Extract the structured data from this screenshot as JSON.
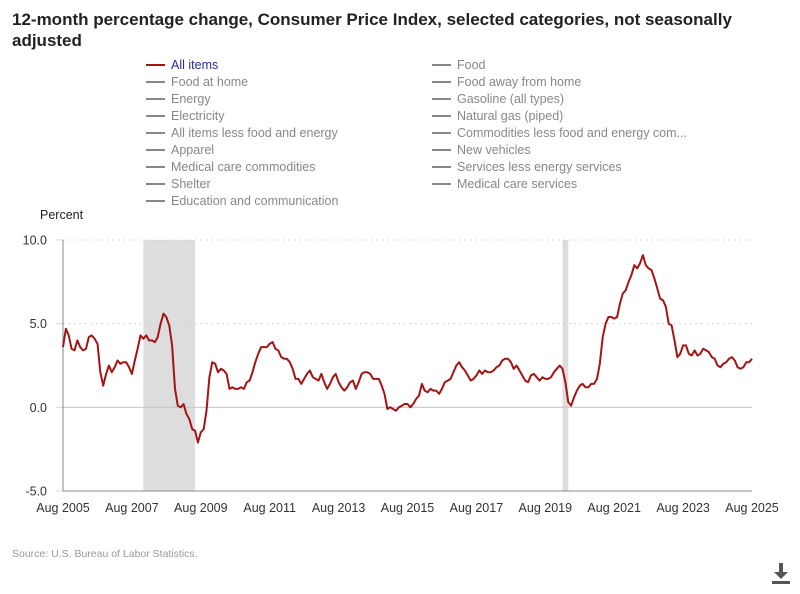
{
  "chart_data": {
    "type": "line",
    "title": "12-month percentage change, Consumer Price Index, selected categories, not seasonally adjusted",
    "ylabel": "Percent",
    "xlabel": "",
    "ylim": [
      -5,
      10
    ],
    "yticks": [
      "10.0",
      "5.0",
      "0.0",
      "-5.0"
    ],
    "ytick_values": [
      10,
      5,
      0,
      -5
    ],
    "xticks": [
      "Aug 2005",
      "Aug 2007",
      "Aug 2009",
      "Aug 2011",
      "Aug 2013",
      "Aug 2015",
      "Aug 2017",
      "Aug 2019",
      "Aug 2021",
      "Aug 2023",
      "Aug 2025"
    ],
    "x_start": "Aug 2005",
    "x_frequency": "monthly",
    "grid": "horizontal dotted",
    "recessions": [
      [
        "Dec 2007",
        "Jun 2009"
      ],
      [
        "Feb 2020",
        "Apr 2020"
      ]
    ],
    "series": [
      {
        "name": "All items",
        "color": "#a31515",
        "values": [
          3.6,
          4.7,
          4.3,
          3.5,
          3.4,
          4.0,
          3.6,
          3.4,
          3.5,
          4.2,
          4.3,
          4.1,
          3.8,
          2.1,
          1.3,
          2.0,
          2.5,
          2.1,
          2.4,
          2.8,
          2.6,
          2.7,
          2.7,
          2.4,
          2.0,
          2.8,
          3.5,
          4.3,
          4.1,
          4.3,
          4.0,
          4.0,
          3.9,
          4.2,
          5.0,
          5.6,
          5.4,
          4.9,
          3.7,
          1.1,
          0.1,
          0.0,
          0.2,
          -0.4,
          -0.7,
          -1.3,
          -1.4,
          -2.1,
          -1.5,
          -1.3,
          -0.2,
          1.8,
          2.7,
          2.6,
          2.1,
          2.3,
          2.2,
          2.0,
          1.1,
          1.2,
          1.1,
          1.1,
          1.2,
          1.1,
          1.5,
          1.6,
          2.1,
          2.7,
          3.2,
          3.6,
          3.6,
          3.6,
          3.8,
          3.9,
          3.5,
          3.4,
          3.0,
          2.9,
          2.9,
          2.7,
          2.3,
          1.7,
          1.7,
          1.4,
          1.7,
          2.0,
          2.2,
          1.8,
          1.7,
          1.6,
          2.0,
          1.5,
          1.1,
          1.4,
          1.8,
          2.0,
          1.5,
          1.2,
          1.0,
          1.2,
          1.5,
          1.6,
          1.1,
          1.5,
          2.0,
          2.1,
          2.1,
          2.0,
          1.7,
          1.7,
          1.7,
          1.3,
          0.8,
          -0.1,
          0.0,
          -0.1,
          -0.2,
          0.0,
          0.1,
          0.2,
          0.2,
          0.0,
          0.2,
          0.5,
          0.7,
          1.4,
          1.0,
          0.9,
          1.1,
          1.0,
          1.0,
          0.8,
          1.1,
          1.5,
          1.6,
          1.7,
          2.1,
          2.5,
          2.7,
          2.4,
          2.2,
          1.9,
          1.6,
          1.7,
          1.9,
          2.2,
          2.0,
          2.2,
          2.1,
          2.1,
          2.2,
          2.4,
          2.5,
          2.8,
          2.9,
          2.9,
          2.7,
          2.3,
          2.5,
          2.2,
          1.9,
          1.6,
          1.5,
          1.9,
          2.0,
          1.8,
          1.6,
          1.8,
          1.7,
          1.7,
          1.8,
          2.1,
          2.3,
          2.5,
          2.3,
          1.5,
          0.3,
          0.1,
          0.6,
          1.0,
          1.3,
          1.4,
          1.2,
          1.2,
          1.4,
          1.4,
          1.7,
          2.6,
          4.2,
          5.0,
          5.4,
          5.4,
          5.3,
          5.4,
          6.2,
          6.8,
          7.0,
          7.5,
          7.9,
          8.5,
          8.3,
          8.6,
          9.1,
          8.5,
          8.3,
          8.2,
          7.7,
          7.1,
          6.5,
          6.4,
          6.0,
          5.0,
          4.9,
          4.0,
          3.0,
          3.2,
          3.7,
          3.7,
          3.2,
          3.1,
          3.4,
          3.1,
          3.2,
          3.5,
          3.4,
          3.3,
          3.0,
          2.9,
          2.5,
          2.4,
          2.6,
          2.7,
          2.9,
          3.0,
          2.8,
          2.4,
          2.3,
          2.4,
          2.7,
          2.7,
          2.9
        ]
      }
    ],
    "legend": [
      "All items",
      "Food",
      "Food at home",
      "Food away from home",
      "Energy",
      "Gasoline (all types)",
      "Electricity",
      "Natural gas (piped)",
      "All items less food and energy",
      "Commodities less food and energy com...",
      "Apparel",
      "New vehicles",
      "Medical care commodities",
      "Services less energy services",
      "Shelter",
      "Medical care services",
      "Education and communication"
    ],
    "legend_active": "All items",
    "legend_placement": "top"
  },
  "source": "Source: U.S. Bureau of Labor Statistics.",
  "download_icon": "download-icon",
  "colors": {
    "active_series": "#a31515",
    "inactive": "#888888",
    "recession": "#dddddd"
  }
}
